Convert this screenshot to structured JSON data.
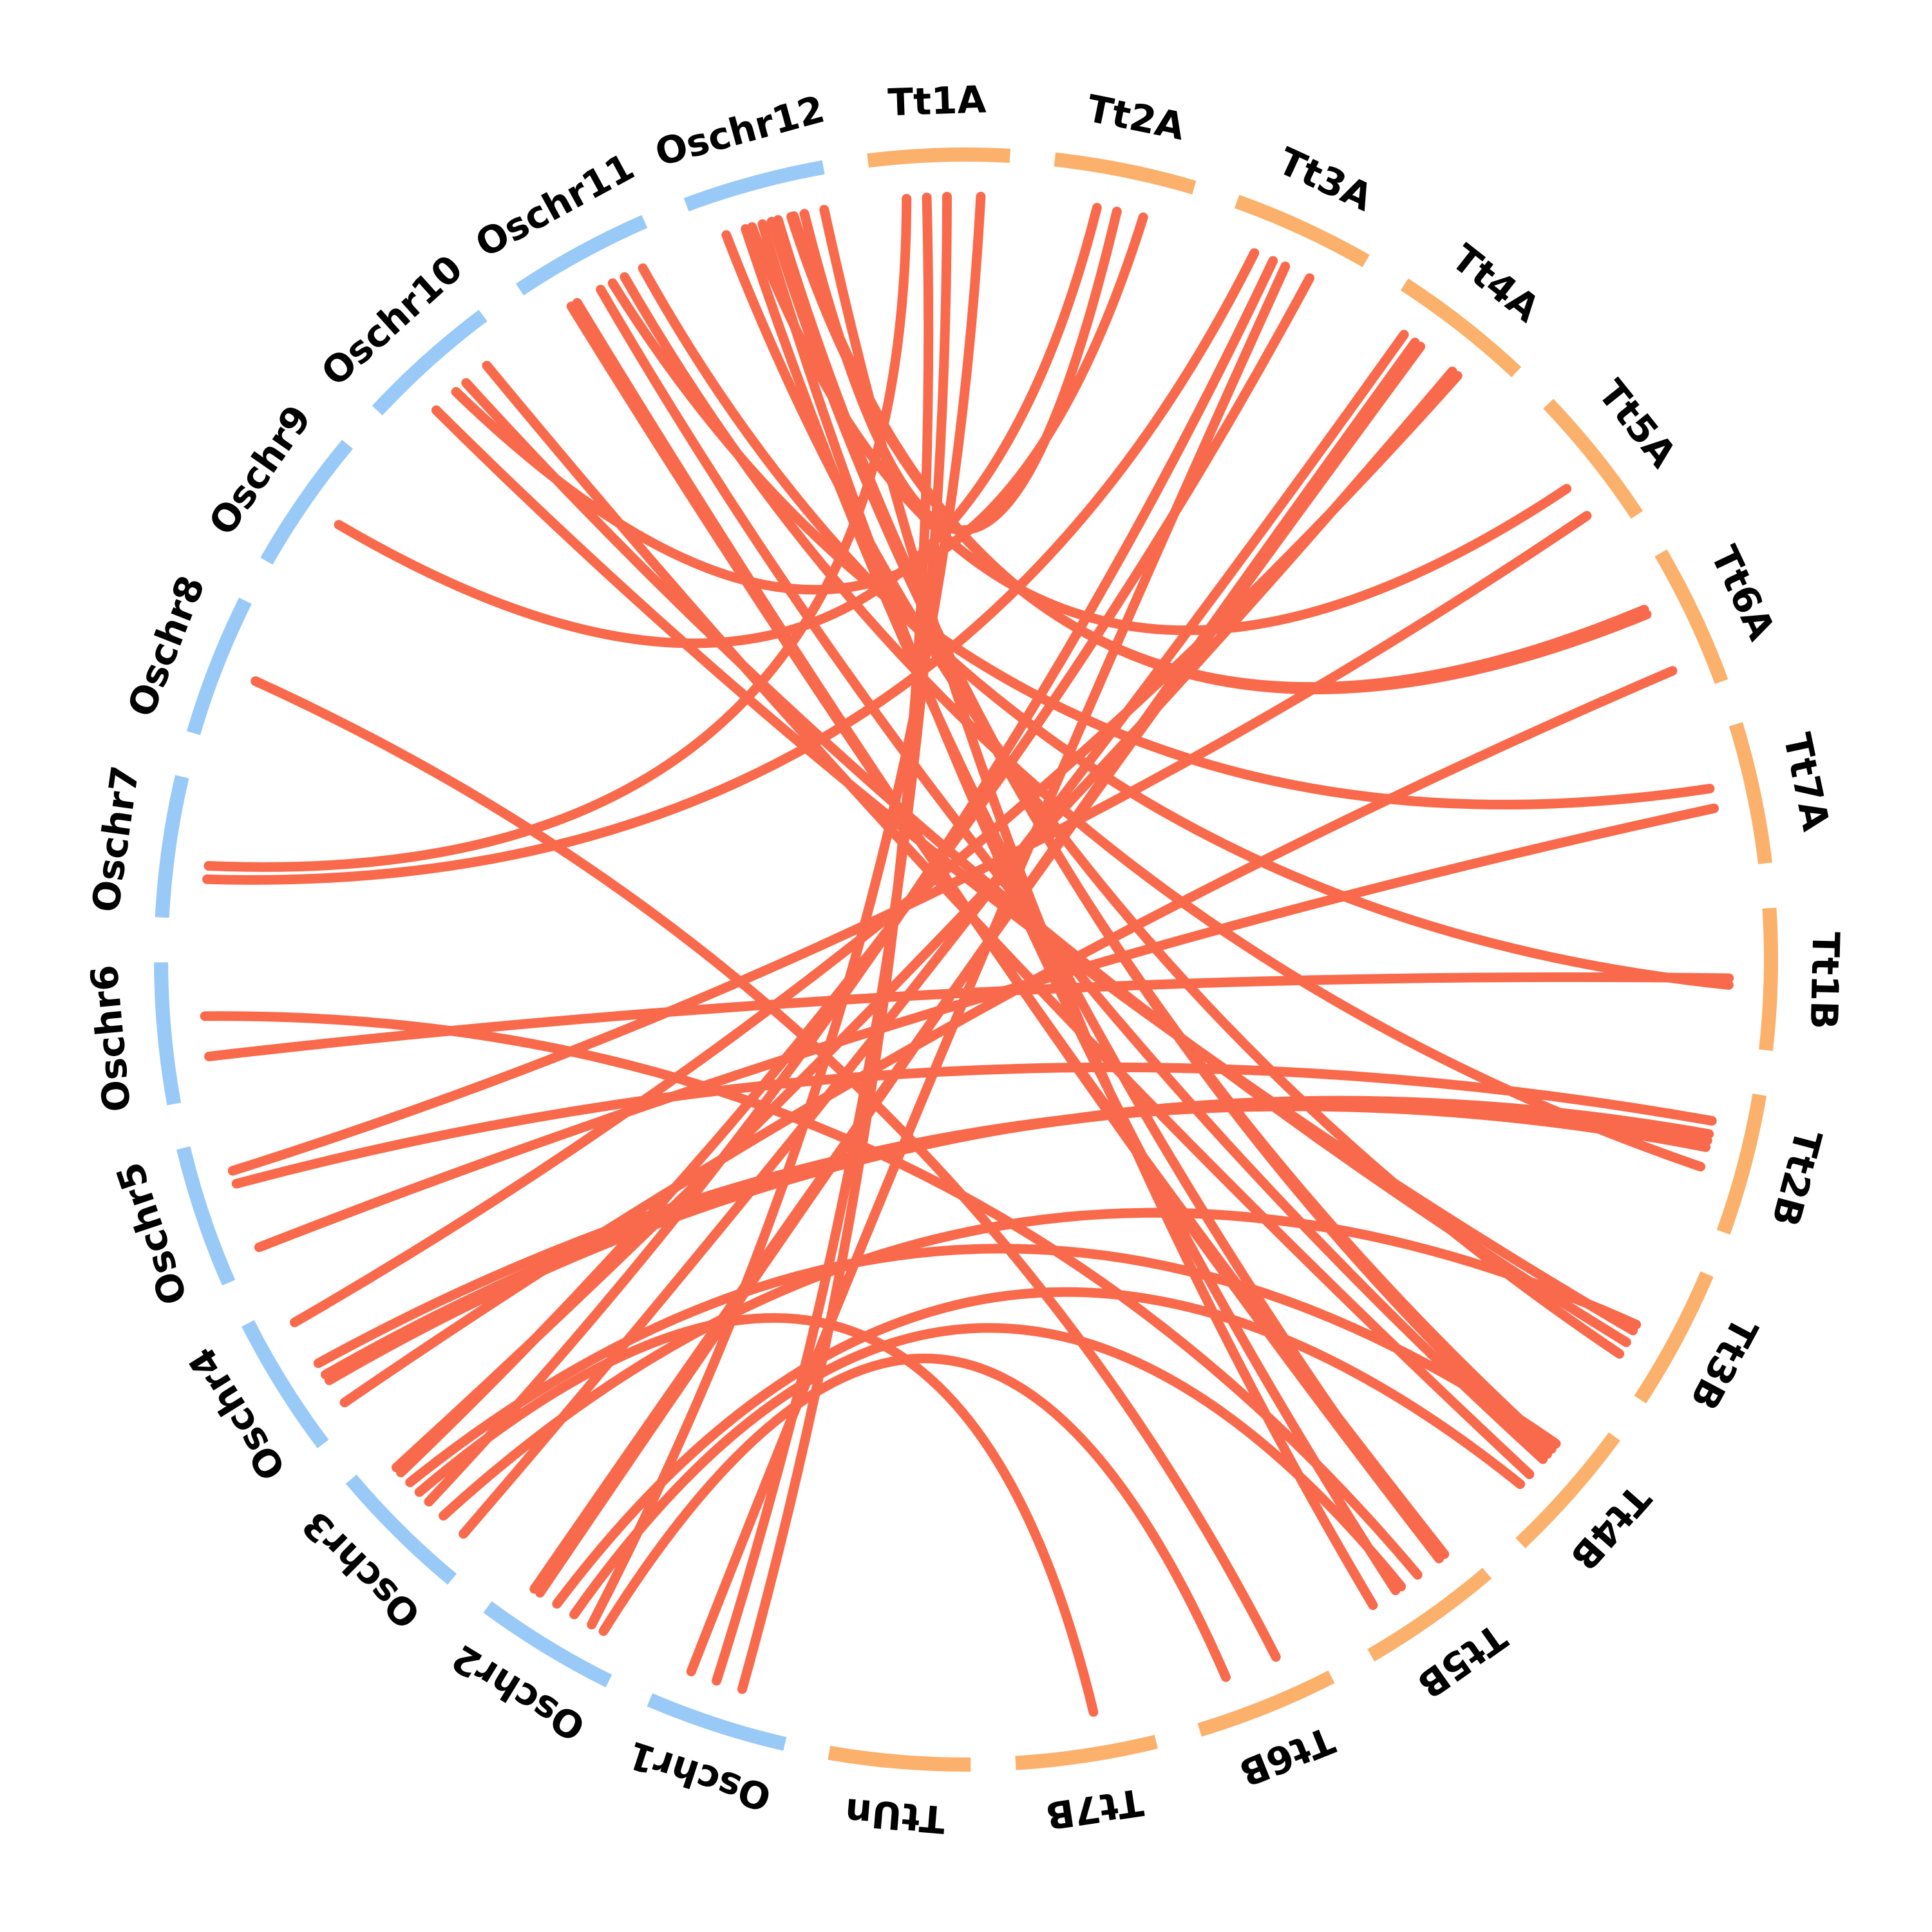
{
  "colors": {
    "rice_band": "#99c9f7",
    "wheat_band": "#fbb06b",
    "link": "#f96a4c",
    "label": "#000000"
  },
  "chromosomes": [
    {
      "id": "Tt1A",
      "label": "Tt1A",
      "group": "wheat"
    },
    {
      "id": "Tt2A",
      "label": "Tt2A",
      "group": "wheat"
    },
    {
      "id": "Tt3A",
      "label": "Tt3A",
      "group": "wheat"
    },
    {
      "id": "Tt4A",
      "label": "Tt4A",
      "group": "wheat"
    },
    {
      "id": "Tt5A",
      "label": "Tt5A",
      "group": "wheat"
    },
    {
      "id": "Tt6A",
      "label": "Tt6A",
      "group": "wheat"
    },
    {
      "id": "Tt7A",
      "label": "Tt7A",
      "group": "wheat"
    },
    {
      "id": "Tt1B",
      "label": "Tt1B",
      "group": "wheat"
    },
    {
      "id": "Tt2B",
      "label": "Tt2B",
      "group": "wheat"
    },
    {
      "id": "Tt3B",
      "label": "Tt3B",
      "group": "wheat"
    },
    {
      "id": "Tt4B",
      "label": "Tt4B",
      "group": "wheat"
    },
    {
      "id": "Tt5B",
      "label": "Tt5B",
      "group": "wheat"
    },
    {
      "id": "Tt6B",
      "label": "Tt6B",
      "group": "wheat"
    },
    {
      "id": "Tt7B",
      "label": "Tt7B",
      "group": "wheat"
    },
    {
      "id": "TtUn",
      "label": "TtUn",
      "group": "wheat"
    },
    {
      "id": "Oschr1",
      "label": "Oschr1",
      "group": "rice"
    },
    {
      "id": "Oschr2",
      "label": "Oschr2",
      "group": "rice"
    },
    {
      "id": "Oschr3",
      "label": "Oschr3",
      "group": "rice"
    },
    {
      "id": "Oschr4",
      "label": "Oschr4",
      "group": "rice"
    },
    {
      "id": "Oschr5",
      "label": "Oschr5",
      "group": "rice"
    },
    {
      "id": "Oschr6",
      "label": "Oschr6",
      "group": "rice"
    },
    {
      "id": "Oschr7",
      "label": "Oschr7",
      "group": "rice"
    },
    {
      "id": "Oschr8",
      "label": "Oschr8",
      "group": "rice"
    },
    {
      "id": "Oschr9",
      "label": "Oschr9",
      "group": "rice"
    },
    {
      "id": "Oschr10",
      "label": "Oschr10",
      "group": "rice"
    },
    {
      "id": "Oschr11",
      "label": "Oschr11",
      "group": "rice"
    },
    {
      "id": "Oschr12",
      "label": "Oschr12",
      "group": "rice"
    }
  ],
  "links": [
    [
      "Oschr12",
      0.35,
      "Tt5B",
      0.2
    ],
    [
      "Oschr12",
      0.48,
      "Tt5B",
      0.6
    ],
    [
      "Oschr12",
      0.55,
      "Tt4B",
      0.35
    ],
    [
      "Oschr12",
      0.6,
      "Tt4B",
      0.4
    ],
    [
      "Oschr12",
      0.95,
      "Tt5B",
      0.8
    ],
    [
      "Oschr12",
      0.7,
      "Tt6A",
      0.3
    ],
    [
      "Oschr12",
      0.72,
      "Tt6A",
      0.34
    ],
    [
      "Oschr12",
      0.4,
      "Tt5A",
      0.55
    ],
    [
      "Oschr11",
      0.25,
      "Tt5B",
      0.15
    ],
    [
      "Oschr11",
      0.3,
      "Tt5B",
      0.2
    ],
    [
      "Oschr11",
      0.5,
      "Tt4B",
      0.45
    ],
    [
      "Oschr11",
      0.7,
      "Tt2B",
      0.6
    ],
    [
      "Oschr11",
      0.85,
      "Tt1B",
      0.55
    ],
    [
      "Oschr10",
      0.3,
      "Tt3B",
      0.6
    ],
    [
      "Oschr10",
      0.6,
      "Tt3B",
      0.7
    ],
    [
      "Oschr10",
      0.8,
      "Tt4B",
      0.6
    ],
    [
      "Oschr6",
      0.3,
      "Tt1B",
      0.5
    ],
    [
      "Oschr5",
      0.15,
      "Tt7A",
      0.55
    ],
    [
      "Oschr5",
      0.65,
      "Tt2B",
      0.25
    ],
    [
      "Oschr5",
      0.75,
      "Tt5A",
      0.8
    ],
    [
      "Oschr4",
      0.15,
      "Tt6A",
      0.8
    ],
    [
      "Oschr4",
      0.35,
      "Tt2B",
      0.35
    ],
    [
      "Oschr4",
      0.4,
      "Tt2B",
      0.4
    ],
    [
      "Oschr4",
      0.5,
      "Tt2B",
      0.45
    ],
    [
      "Oschr4",
      0.85,
      "Tt4A",
      0.7
    ],
    [
      "Oschr3",
      0.15,
      "Tt4A",
      0.2
    ],
    [
      "Oschr3",
      0.35,
      "Tt3B",
      0.55
    ],
    [
      "Oschr3",
      0.5,
      "Tt3A",
      0.4
    ],
    [
      "Oschr3",
      0.7,
      "Tt4B",
      0.3
    ],
    [
      "Oschr3",
      0.8,
      "Tt3A",
      0.7
    ],
    [
      "Oschr3",
      0.85,
      "Tt4A",
      0.65
    ],
    [
      "Oschr2",
      0.3,
      "Tt1A",
      0.8
    ],
    [
      "Oschr2",
      0.45,
      "Tt5B",
      0.55
    ],
    [
      "Oschr2",
      0.6,
      "Tt4B",
      0.7
    ],
    [
      "Oschr2",
      0.75,
      "Tt4A",
      0.3
    ],
    [
      "Oschr2",
      0.8,
      "Tt4A",
      0.35
    ],
    [
      "Oschr1",
      0.4,
      "Tt1A",
      0.4
    ],
    [
      "Oschr1",
      0.6,
      "Tt1A",
      0.55
    ],
    [
      "Oschr1",
      0.8,
      "Tt3A",
      0.5
    ],
    [
      "Oschr7",
      0.3,
      "Tt3A",
      0.25
    ],
    [
      "Oschr7",
      0.4,
      "Tt1A",
      0.25
    ],
    [
      "Oschr9",
      0.5,
      "Tt2A",
      0.35
    ],
    [
      "Oschr8",
      0.5,
      "Tt6B",
      0.3
    ],
    [
      "Oschr10",
      0.5,
      "Tt2A",
      0.7
    ],
    [
      "Oschr11",
      0.6,
      "Tt7A",
      0.4
    ],
    [
      "Oschr12",
      0.2,
      "Tt3B",
      0.8
    ],
    [
      "Oschr12",
      0.8,
      "Tt2A",
      0.5
    ],
    [
      "Oschr3",
      0.6,
      "Tt7B",
      0.4
    ],
    [
      "Oschr2",
      0.2,
      "Tt6B",
      0.7
    ],
    [
      "Oschr6",
      0.6,
      "Tt5B",
      0.4
    ]
  ]
}
